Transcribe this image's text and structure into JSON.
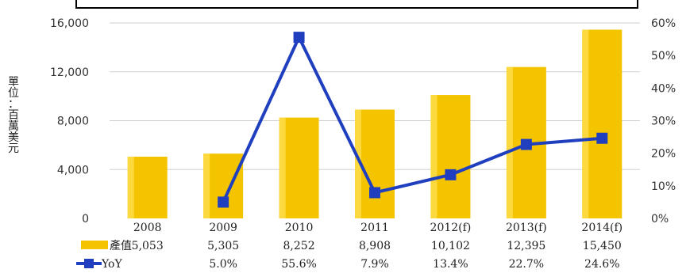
{
  "chart_data": {
    "type": "bar+line",
    "categories": [
      "2008",
      "2009",
      "2010",
      "2011",
      "2012(f)",
      "2013(f)",
      "2014(f)"
    ],
    "series": [
      {
        "name": "產值",
        "type": "bar",
        "axis": "left",
        "values": [
          5053,
          5305,
          8252,
          8908,
          10102,
          12395,
          15450
        ],
        "value_labels": [
          "5,053",
          "5,305",
          "8,252",
          "8,908",
          "10,102",
          "12,395",
          "15,450"
        ],
        "color": "#F5C400"
      },
      {
        "name": "YoY",
        "type": "line",
        "axis": "right",
        "values": [
          null,
          5.0,
          55.6,
          7.9,
          13.4,
          22.7,
          24.6
        ],
        "value_labels": [
          "",
          "5.0%",
          "55.6%",
          "7.9%",
          "13.4%",
          "22.7%",
          "24.6%"
        ],
        "color": "#1F3FBF"
      }
    ],
    "ylabel": "單位：百萬美元",
    "ylim": [
      0,
      16000
    ],
    "yticks": [
      0,
      4000,
      8000,
      12000,
      16000
    ],
    "ytick_labels": [
      "0",
      "4,000",
      "8,000",
      "12,000",
      "16,000"
    ],
    "y2lim": [
      0,
      60
    ],
    "y2ticks": [
      0,
      10,
      20,
      30,
      40,
      50,
      60
    ],
    "y2tick_labels": [
      "0%",
      "10%",
      "20%",
      "30%",
      "40%",
      "50%",
      "60%"
    ],
    "grid": true,
    "legend": "data-table-bottom"
  }
}
